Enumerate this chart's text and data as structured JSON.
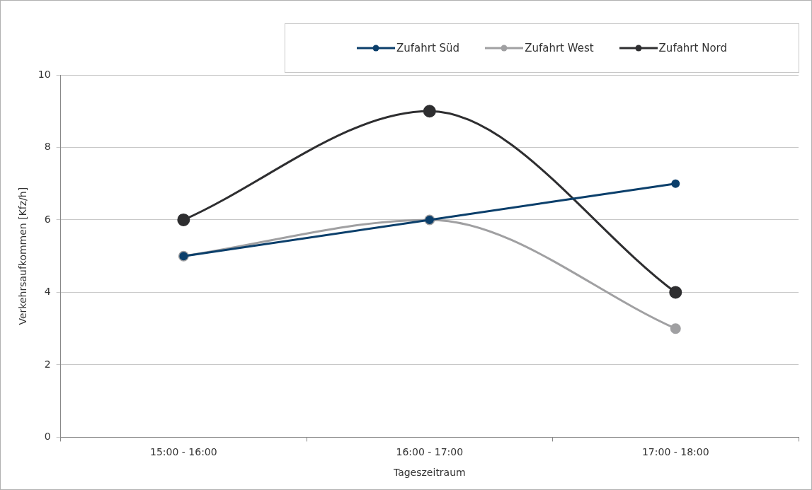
{
  "chart_data": {
    "type": "line",
    "xlabel": "Tageszeitraum",
    "ylabel": "Verkehrsaufkommen [Kfz/h]",
    "categories": [
      "15:00 - 16:00",
      "16:00 - 17:00",
      "17:00 - 18:00"
    ],
    "series": [
      {
        "name": "Zufahrt Süd",
        "color": "#0b3f6b",
        "values": [
          5,
          6,
          7
        ]
      },
      {
        "name": "Zufahrt West",
        "color": "#a0a0a2",
        "values": [
          5,
          6,
          3
        ]
      },
      {
        "name": "Zufahrt Nord",
        "color": "#2e2e30",
        "values": [
          6,
          9,
          4
        ]
      }
    ],
    "ylim": [
      0,
      10
    ],
    "yticks": [
      0,
      2,
      4,
      6,
      8,
      10
    ],
    "grid": "y",
    "legend": "top right",
    "marker": "circle",
    "line_style": "solid"
  }
}
